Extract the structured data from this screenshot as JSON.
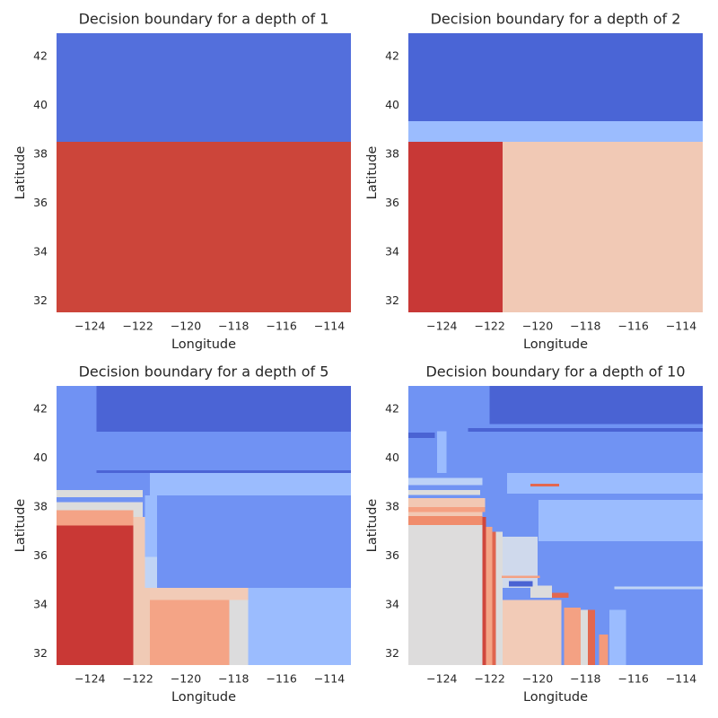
{
  "chart_data": [
    {
      "type": "regions",
      "title": "Decision boundary for a depth of 1",
      "xlabel": "Longitude",
      "ylabel": "Latitude",
      "xlim": [
        -125.4,
        -113.1
      ],
      "ylim": [
        31.55,
        42.95
      ],
      "xticks": [
        {
          "value": -124,
          "label": "−124"
        },
        {
          "value": -122,
          "label": "−122"
        },
        {
          "value": -120,
          "label": "−120"
        },
        {
          "value": -118,
          "label": "−118"
        },
        {
          "value": -116,
          "label": "−116"
        },
        {
          "value": -114,
          "label": "−114"
        }
      ],
      "yticks": [
        32,
        34,
        36,
        38,
        40,
        42
      ],
      "regions": [
        {
          "x": [
            -125.4,
            -113.1
          ],
          "y": [
            38.52,
            42.95
          ],
          "color": "#536fdc"
        },
        {
          "x": [
            -125.4,
            -113.1
          ],
          "y": [
            31.55,
            38.52
          ],
          "color": "#cc453a"
        }
      ]
    },
    {
      "type": "regions",
      "title": "Decision boundary for a depth of 2",
      "xlabel": "Longitude",
      "ylabel": "Latitude",
      "xlim": [
        -125.4,
        -113.1
      ],
      "ylim": [
        31.55,
        42.95
      ],
      "xticks": [
        {
          "value": -124,
          "label": "−124"
        },
        {
          "value": -122,
          "label": "−122"
        },
        {
          "value": -120,
          "label": "−120"
        },
        {
          "value": -118,
          "label": "−118"
        },
        {
          "value": -116,
          "label": "−116"
        },
        {
          "value": -114,
          "label": "−114"
        }
      ],
      "yticks": [
        32,
        34,
        36,
        38,
        40,
        42
      ],
      "regions": [
        {
          "x": [
            -125.4,
            -113.1
          ],
          "y": [
            39.36,
            42.95
          ],
          "color": "#4a65d6"
        },
        {
          "x": [
            -125.4,
            -113.1
          ],
          "y": [
            38.52,
            39.36
          ],
          "color": "#9bbcfe"
        },
        {
          "x": [
            -125.4,
            -121.46
          ],
          "y": [
            31.55,
            38.52
          ],
          "color": "#c83836"
        },
        {
          "x": [
            -121.46,
            -113.1
          ],
          "y": [
            31.55,
            38.52
          ],
          "color": "#f1c9b5"
        }
      ]
    },
    {
      "type": "regions",
      "title": "Decision boundary for a depth of 5",
      "xlabel": "Longitude",
      "ylabel": "Latitude",
      "xlim": [
        -125.4,
        -113.1
      ],
      "ylim": [
        31.55,
        42.95
      ],
      "xticks": [
        {
          "value": -124,
          "label": "−124"
        },
        {
          "value": -122,
          "label": "−122"
        },
        {
          "value": -120,
          "label": "−120"
        },
        {
          "value": -118,
          "label": "−118"
        },
        {
          "value": -116,
          "label": "−116"
        },
        {
          "value": -114,
          "label": "−114"
        }
      ],
      "yticks": [
        32,
        34,
        36,
        38,
        40,
        42
      ],
      "regions": [
        {
          "x": [
            -125.4,
            -113.1
          ],
          "y": [
            31.55,
            42.95
          ],
          "color": "#7092f3"
        },
        {
          "x": [
            -123.74,
            -113.1
          ],
          "y": [
            41.08,
            42.95
          ],
          "color": "#4b64d5"
        },
        {
          "x": [
            -123.74,
            -113.1
          ],
          "y": [
            39.4,
            39.5
          ],
          "color": "#4b64d5"
        },
        {
          "x": [
            -121.5,
            -113.1
          ],
          "y": [
            38.48,
            39.4
          ],
          "color": "#9bbcfe"
        },
        {
          "x": [
            -125.4,
            -121.8
          ],
          "y": [
            38.4,
            38.7
          ],
          "color": "#dcdcdc"
        },
        {
          "x": [
            -125.4,
            -121.8
          ],
          "y": [
            37.25,
            38.2
          ],
          "color": "#dcdcdc"
        },
        {
          "x": [
            -125.4,
            -122.2
          ],
          "y": [
            37.25,
            37.87
          ],
          "color": "#f4a386"
        },
        {
          "x": [
            -125.4,
            -122.2
          ],
          "y": [
            31.55,
            37.25
          ],
          "color": "#c93835"
        },
        {
          "x": [
            -122.2,
            -121.5
          ],
          "y": [
            31.55,
            37.6
          ],
          "color": "#f0cab5"
        },
        {
          "x": [
            -121.7,
            -121.2
          ],
          "y": [
            35.96,
            38.48
          ],
          "color": "#9bbcfe"
        },
        {
          "x": [
            -121.7,
            -121.2
          ],
          "y": [
            34.71,
            35.96
          ],
          "color": "#c0d4f5"
        },
        {
          "x": [
            -121.5,
            -117.4
          ],
          "y": [
            34.2,
            34.71
          ],
          "color": "#f2cbb7"
        },
        {
          "x": [
            -121.5,
            -118.18
          ],
          "y": [
            31.55,
            34.2
          ],
          "color": "#f4a486"
        },
        {
          "x": [
            -118.18,
            -117.4
          ],
          "y": [
            31.55,
            34.2
          ],
          "color": "#dcdcdd"
        },
        {
          "x": [
            -117.4,
            -113.1
          ],
          "y": [
            31.55,
            34.71
          ],
          "color": "#9bbcfe"
        }
      ]
    },
    {
      "type": "regions",
      "title": "Decision boundary for a depth of 10",
      "xlabel": "Longitude",
      "ylabel": "Latitude",
      "xlim": [
        -125.4,
        -113.1
      ],
      "ylim": [
        31.55,
        42.95
      ],
      "xticks": [
        {
          "value": -124,
          "label": "−124"
        },
        {
          "value": -122,
          "label": "−122"
        },
        {
          "value": -120,
          "label": "−120"
        },
        {
          "value": -118,
          "label": "−118"
        },
        {
          "value": -116,
          "label": "−116"
        },
        {
          "value": -114,
          "label": "−114"
        }
      ],
      "yticks": [
        32,
        34,
        36,
        38,
        40,
        42
      ],
      "regions": [
        {
          "x": [
            -125.4,
            -113.1
          ],
          "y": [
            31.55,
            42.95
          ],
          "color": "#7093f3"
        },
        {
          "x": [
            -122.0,
            -113.1
          ],
          "y": [
            41.4,
            42.95
          ],
          "color": "#4a63d3"
        },
        {
          "x": [
            -122.9,
            -113.1
          ],
          "y": [
            41.08,
            41.23
          ],
          "color": "#4a63d3"
        },
        {
          "x": [
            -125.4,
            -124.3
          ],
          "y": [
            40.83,
            41.05
          ],
          "color": "#4a63d3"
        },
        {
          "x": [
            -124.2,
            -123.8
          ],
          "y": [
            39.4,
            41.1
          ],
          "color": "#9bbcfe"
        },
        {
          "x": [
            -125.4,
            -122.3
          ],
          "y": [
            38.9,
            39.2
          ],
          "color": "#bcd2f7"
        },
        {
          "x": [
            -121.28,
            -113.1
          ],
          "y": [
            38.56,
            39.4
          ],
          "color": "#9bbcfe"
        },
        {
          "x": [
            -120.4,
            -113.1
          ],
          "y": [
            38.45,
            38.56
          ],
          "color": "#7093f3"
        },
        {
          "x": [
            -119.97,
            -113.1
          ],
          "y": [
            36.6,
            38.3
          ],
          "color": "#9bbcfe"
        },
        {
          "x": [
            -125.4,
            -122.4
          ],
          "y": [
            38.5,
            38.7
          ],
          "color": "#dcdcdc"
        },
        {
          "x": [
            -125.4,
            -122.2
          ],
          "y": [
            38.0,
            38.37
          ],
          "color": "#f2c8b4"
        },
        {
          "x": [
            -125.4,
            -122.2
          ],
          "y": [
            37.8,
            38.0
          ],
          "color": "#f5a082"
        },
        {
          "x": [
            -125.4,
            -122.3
          ],
          "y": [
            37.64,
            37.8
          ],
          "color": "#f2c8b4"
        },
        {
          "x": [
            -125.4,
            -122.3
          ],
          "y": [
            37.27,
            37.64
          ],
          "color": "#f08c6c"
        },
        {
          "x": [
            -125.4,
            -122.3
          ],
          "y": [
            31.55,
            37.27
          ],
          "color": "#dddcdc"
        },
        {
          "x": [
            -122.3,
            -122.15
          ],
          "y": [
            31.55,
            37.6
          ],
          "color": "#d0473d"
        },
        {
          "x": [
            -122.15,
            -121.9
          ],
          "y": [
            31.55,
            37.2
          ],
          "color": "#f4a486"
        },
        {
          "x": [
            -121.9,
            -121.75
          ],
          "y": [
            31.55,
            37.0
          ],
          "color": "#e0654f"
        },
        {
          "x": [
            -121.75,
            -121.46
          ],
          "y": [
            31.55,
            37.0
          ],
          "color": "#dcdcdc"
        },
        {
          "x": [
            -121.46,
            -120.0
          ],
          "y": [
            34.7,
            36.8
          ],
          "color": "#cfd9ec"
        },
        {
          "x": [
            -121.46,
            -119.0
          ],
          "y": [
            31.55,
            34.2
          ],
          "color": "#f2cbb7"
        },
        {
          "x": [
            -118.9,
            -118.2
          ],
          "y": [
            31.55,
            33.9
          ],
          "color": "#f4a183"
        },
        {
          "x": [
            -118.2,
            -117.9
          ],
          "y": [
            31.55,
            33.8
          ],
          "color": "#dcdcdc"
        },
        {
          "x": [
            -117.9,
            -117.6
          ],
          "y": [
            31.55,
            33.8
          ],
          "color": "#e3674f"
        },
        {
          "x": [
            -117.43,
            -117.06
          ],
          "y": [
            31.55,
            32.8
          ],
          "color": "#f49a7b"
        },
        {
          "x": [
            -117.0,
            -116.3
          ],
          "y": [
            31.55,
            33.8
          ],
          "color": "#9bbcfe"
        },
        {
          "x": [
            -116.8,
            -113.1
          ],
          "y": [
            34.65,
            34.75
          ],
          "color": "#c0d4f5"
        },
        {
          "x": [
            -120.3,
            -119.4
          ],
          "y": [
            34.3,
            34.8
          ],
          "color": "#dcdcdc"
        },
        {
          "x": [
            -119.4,
            -118.7
          ],
          "y": [
            34.3,
            34.5
          ],
          "color": "#e3674f"
        },
        {
          "x": [
            -121.2,
            -120.2
          ],
          "y": [
            34.75,
            34.97
          ],
          "color": "#4a63d3"
        },
        {
          "x": [
            -121.5,
            -119.9
          ],
          "y": [
            35.1,
            35.2
          ],
          "color": "#f4a183"
        },
        {
          "x": [
            -120.3,
            -119.1
          ],
          "y": [
            38.85,
            38.95
          ],
          "color": "#e3674f"
        }
      ]
    }
  ]
}
